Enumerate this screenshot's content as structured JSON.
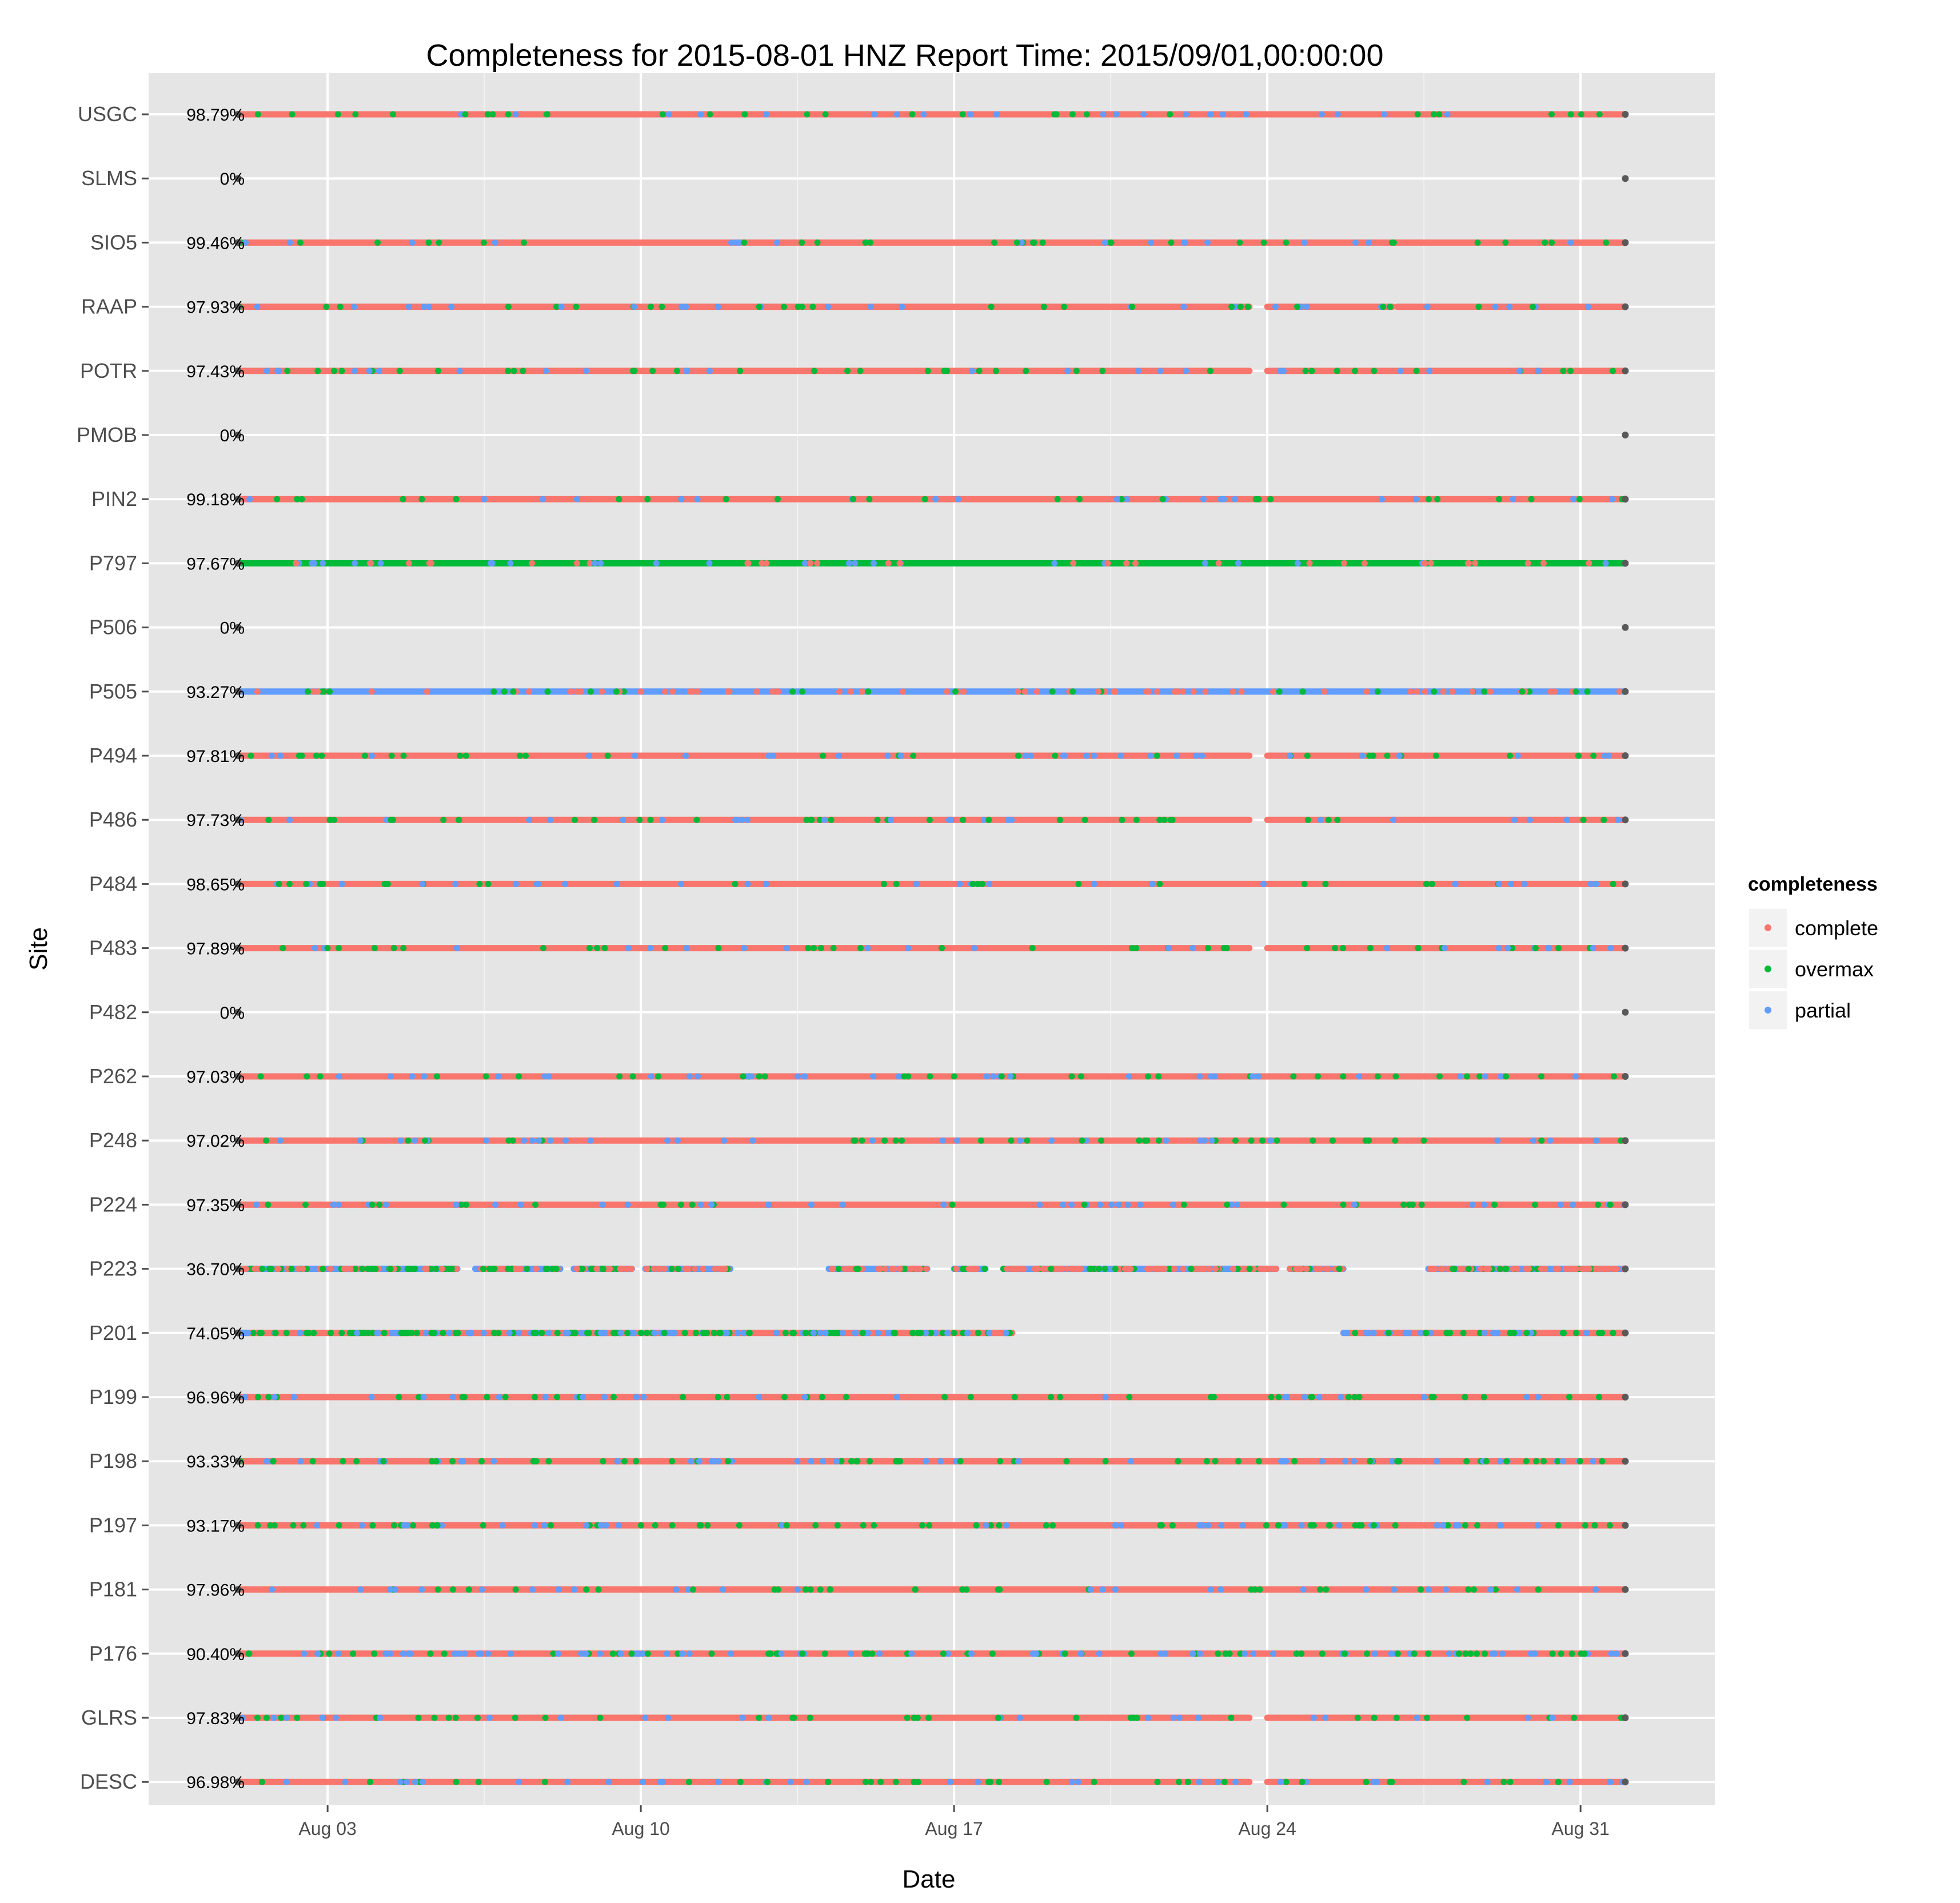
{
  "chart_data": {
    "type": "scatter",
    "title": "Completeness for  2015-08-01 HNZ  Report Time:  2015/09/01,00:00:00",
    "xlabel": "Date",
    "ylabel": "Site",
    "x_range_days": [
      -2.0,
      33.0
    ],
    "x_ticks": [
      {
        "label": "Aug 03",
        "day": 2
      },
      {
        "label": "Aug 10",
        "day": 9
      },
      {
        "label": "Aug 17",
        "day": 16
      },
      {
        "label": "Aug 24",
        "day": 23
      },
      {
        "label": "Aug 31",
        "day": 30
      }
    ],
    "sites": [
      "USGC",
      "SLMS",
      "SIO5",
      "RAAP",
      "POTR",
      "PMOB",
      "PIN2",
      "P797",
      "P506",
      "P505",
      "P494",
      "P486",
      "P484",
      "P483",
      "P482",
      "P262",
      "P248",
      "P224",
      "P223",
      "P201",
      "P199",
      "P198",
      "P197",
      "P181",
      "P176",
      "GLRS",
      "DESC"
    ],
    "percentages": [
      "98.79%",
      "0%",
      "99.46%",
      "97.93%",
      "97.43%",
      "0%",
      "99.18%",
      "97.67%",
      "0%",
      "93.27%",
      "97.81%",
      "97.73%",
      "98.65%",
      "97.89%",
      "0%",
      "97.03%",
      "97.02%",
      "97.35%",
      "36.70%",
      "74.05%",
      "96.96%",
      "93.33%",
      "93.17%",
      "97.96%",
      "90.40%",
      "97.83%",
      "96.98%"
    ],
    "series_days_range": [
      0,
      31
    ],
    "gaps_days": {
      "RAAP": [
        [
          22.6,
          23.0
        ],
        [
          25.8,
          25.9
        ]
      ],
      "POTR": [
        [
          22.6,
          23.0
        ]
      ],
      "P494": [
        [
          22.6,
          23.0
        ]
      ],
      "P486": [
        [
          22.6,
          23.0
        ]
      ],
      "P483": [
        [
          22.6,
          23.0
        ]
      ],
      "P201": [
        [
          17.3,
          24.7
        ]
      ],
      "P223": [
        [
          4.9,
          5.3
        ],
        [
          7.2,
          7.5
        ],
        [
          8.8,
          9.1
        ],
        [
          11.0,
          13.2
        ],
        [
          15.4,
          16.0
        ],
        [
          16.7,
          17.1
        ],
        [
          23.2,
          23.5
        ],
        [
          24.7,
          26.6
        ]
      ],
      "GLRS": [
        [
          22.6,
          23.0
        ]
      ],
      "DESC": [
        [
          22.6,
          23.0
        ]
      ]
    },
    "legend": {
      "title": "completeness",
      "placement": "right",
      "items": [
        {
          "label": "complete",
          "color": "#F8766D"
        },
        {
          "label": "overmax",
          "color": "#00BA38"
        },
        {
          "label": "partial",
          "color": "#619CFF"
        }
      ]
    },
    "endpoint_color": "#595959",
    "panel_background": "#E5E5E5",
    "grid_color": "#FFFFFF"
  }
}
